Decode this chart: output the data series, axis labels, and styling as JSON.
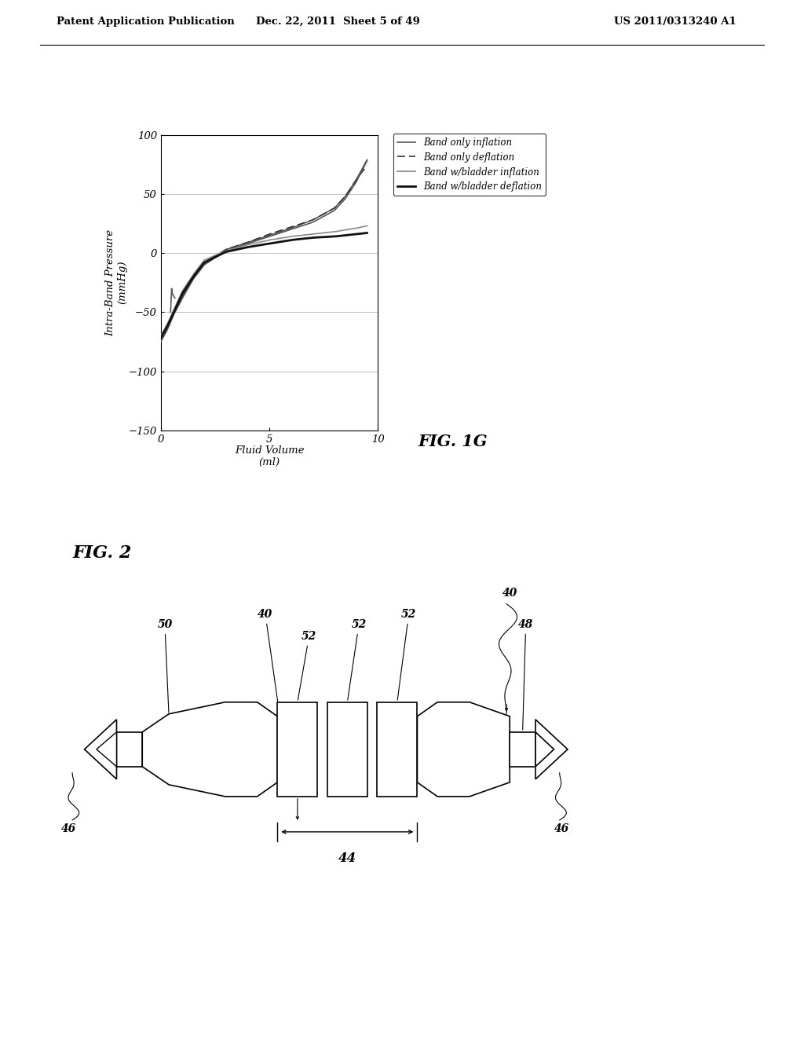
{
  "header_left": "Patent Application Publication",
  "header_mid": "Dec. 22, 2011  Sheet 5 of 49",
  "header_right": "US 2011/0313240 A1",
  "fig1g_title": "FIG. 1G",
  "fig2_title": "FIG. 2",
  "graph_ylabel": "Intra-Band Pressure\n(mmHg)",
  "graph_xlabel": "Fluid Volume\n(ml)",
  "graph_xlim": [
    0,
    10
  ],
  "graph_ylim": [
    -150,
    100
  ],
  "graph_yticks": [
    -150,
    -100,
    -50,
    0,
    50,
    100
  ],
  "graph_xticks": [
    0,
    5,
    10
  ],
  "bg_color": "#ffffff"
}
